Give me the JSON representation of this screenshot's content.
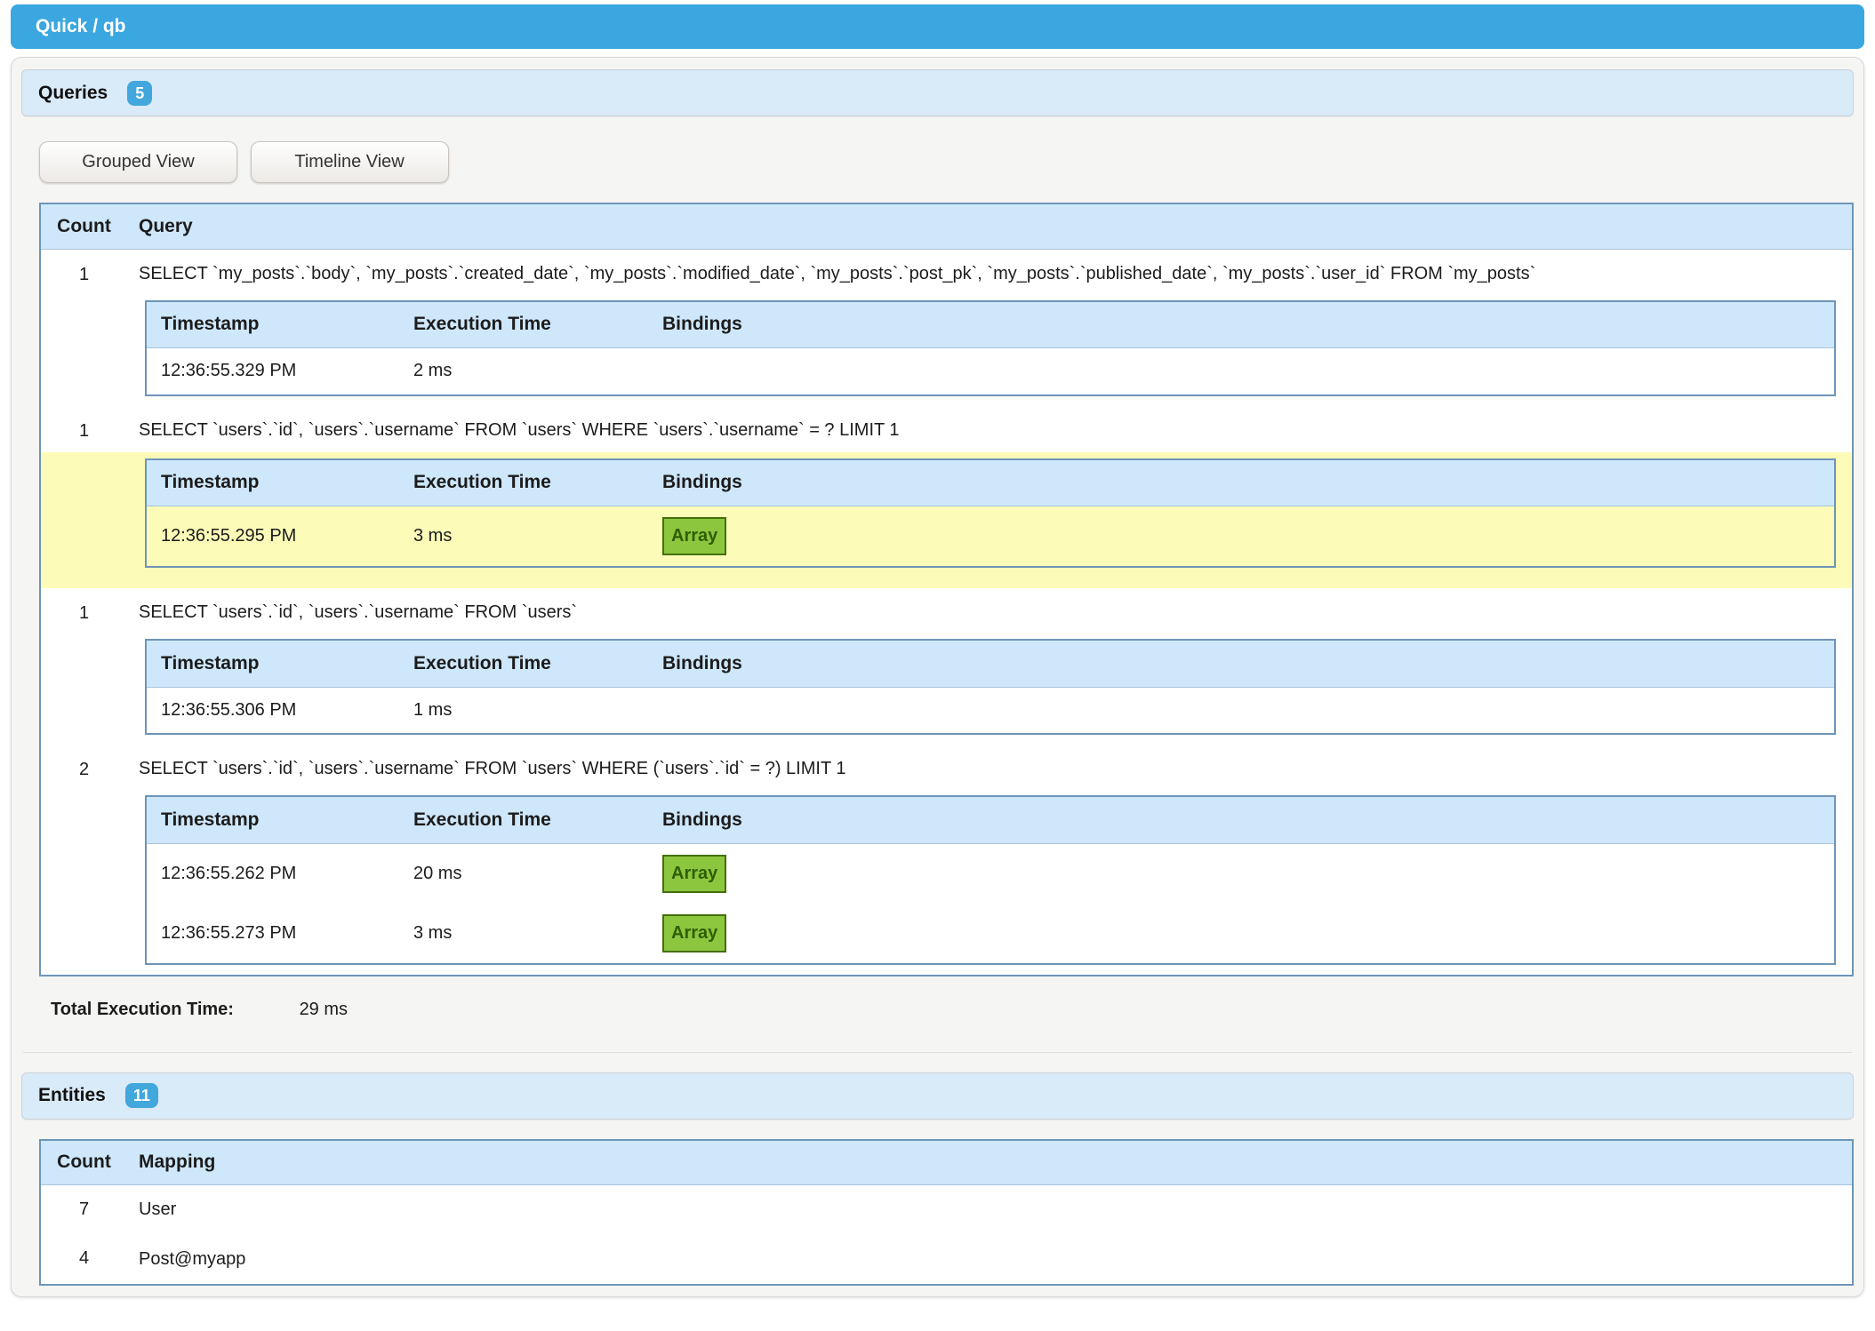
{
  "topbar": {
    "title": "Quick / qb"
  },
  "colors": {
    "accent_blue": "#3BA7E0",
    "section_bar_blue": "#D9EAF8",
    "table_header_blue": "#CEE7FB",
    "table_border_blue": "#6E95B8",
    "highlight_yellow": "#FCFCB8",
    "binding_green": "#8CC63F",
    "binding_green_border": "#44700A"
  },
  "queries_section": {
    "title": "Queries",
    "badge": "5",
    "buttons": {
      "grouped": "Grouped View",
      "timeline": "Timeline View"
    },
    "table": {
      "headers": {
        "count": "Count",
        "query": "Query"
      },
      "exec_headers": {
        "timestamp": "Timestamp",
        "execution_time": "Execution Time",
        "bindings": "Bindings"
      },
      "rows": [
        {
          "count": "1",
          "query": "SELECT `my_posts`.`body`, `my_posts`.`created_date`, `my_posts`.`modified_date`, `my_posts`.`post_pk`, `my_posts`.`published_date`, `my_posts`.`user_id` FROM `my_posts`",
          "highlighted": false,
          "executions": [
            {
              "timestamp": "12:36:55.329 PM",
              "execution_time": "2 ms",
              "bindings": null
            }
          ]
        },
        {
          "count": "1",
          "query": "SELECT `users`.`id`, `users`.`username` FROM `users` WHERE `users`.`username` = ? LIMIT 1",
          "highlighted": true,
          "executions": [
            {
              "timestamp": "12:36:55.295 PM",
              "execution_time": "3 ms",
              "bindings": "Array"
            }
          ]
        },
        {
          "count": "1",
          "query": "SELECT `users`.`id`, `users`.`username` FROM `users`",
          "highlighted": false,
          "executions": [
            {
              "timestamp": "12:36:55.306 PM",
              "execution_time": "1 ms",
              "bindings": null
            }
          ]
        },
        {
          "count": "2",
          "query": "SELECT `users`.`id`, `users`.`username` FROM `users` WHERE (`users`.`id` = ?) LIMIT 1",
          "highlighted": false,
          "executions": [
            {
              "timestamp": "12:36:55.262 PM",
              "execution_time": "20 ms",
              "bindings": "Array"
            },
            {
              "timestamp": "12:36:55.273 PM",
              "execution_time": "3 ms",
              "bindings": "Array"
            }
          ]
        }
      ]
    },
    "total_label": "Total Execution Time:",
    "total_value": "29 ms"
  },
  "entities_section": {
    "title": "Entities",
    "badge": "11",
    "table": {
      "headers": {
        "count": "Count",
        "mapping": "Mapping"
      },
      "rows": [
        {
          "count": "7",
          "mapping": "User"
        },
        {
          "count": "4",
          "mapping": "Post@myapp"
        }
      ]
    }
  }
}
